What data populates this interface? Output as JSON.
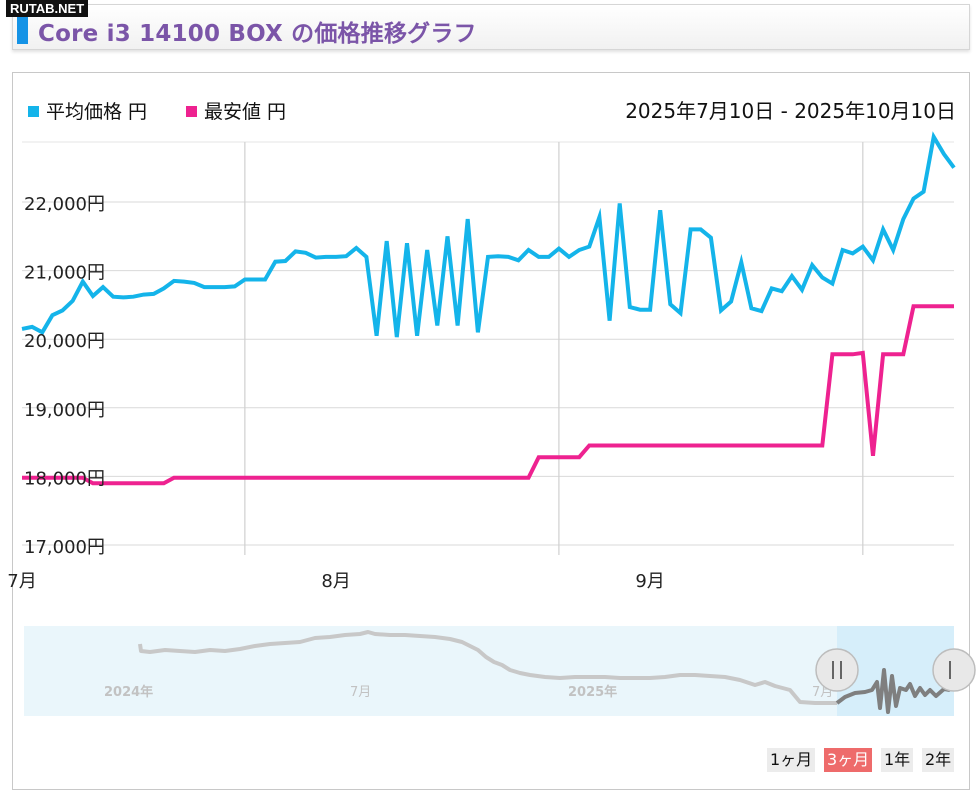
{
  "site": "RUTAB.NET",
  "header": {
    "title": "Core i3 14100 BOX の価格推移グラフ"
  },
  "colors": {
    "avg": "#14b4ea",
    "min": "#ee2290",
    "accent": "#1593e6",
    "title": "#7b55a8"
  },
  "date_range": "2025年7月10日 - 2025年10月10日",
  "range_buttons": [
    {
      "label": "1ヶ月",
      "active": false
    },
    {
      "label": "3ヶ月",
      "active": true
    },
    {
      "label": "1年",
      "active": false
    },
    {
      "label": "2年",
      "active": false
    }
  ],
  "navigator": {
    "labels": [
      "2024年",
      "7月",
      "2025年",
      "7月"
    ],
    "handle_icons": [
      "handle-left-icon",
      "handle-right-icon"
    ]
  },
  "chart_data": {
    "type": "line",
    "legend": "top-left",
    "grid": true,
    "x_start": "2025-07-10",
    "x_end": "2025-10-10",
    "x_ticks": [
      {
        "label": "7月",
        "date": "2025-07-10"
      },
      {
        "label": "8月",
        "date": "2025-08-10"
      },
      {
        "label": "9月",
        "date": "2025-09-10"
      }
    ],
    "ylim": [
      16900,
      22950
    ],
    "yticks": [
      17000,
      18000,
      19000,
      20000,
      21000,
      22000
    ],
    "ytick_labels": [
      "17,000円",
      "18,000円",
      "19,000円",
      "20,000円",
      "21,000円",
      "22,000円"
    ],
    "series": [
      {
        "name": "平均価格 円",
        "color": "#14b4ea",
        "data": [
          [
            "2025-07-10",
            20150
          ],
          [
            "2025-07-11",
            20180
          ],
          [
            "2025-07-12",
            20100
          ],
          [
            "2025-07-13",
            20350
          ],
          [
            "2025-07-14",
            20420
          ],
          [
            "2025-07-15",
            20560
          ],
          [
            "2025-07-16",
            20840
          ],
          [
            "2025-07-17",
            20630
          ],
          [
            "2025-07-18",
            20760
          ],
          [
            "2025-07-19",
            20620
          ],
          [
            "2025-07-20",
            20610
          ],
          [
            "2025-07-21",
            20620
          ],
          [
            "2025-07-22",
            20650
          ],
          [
            "2025-07-23",
            20660
          ],
          [
            "2025-07-24",
            20740
          ],
          [
            "2025-07-25",
            20850
          ],
          [
            "2025-07-26",
            20840
          ],
          [
            "2025-07-27",
            20820
          ],
          [
            "2025-07-28",
            20760
          ],
          [
            "2025-07-29",
            20760
          ],
          [
            "2025-07-30",
            20760
          ],
          [
            "2025-07-31",
            20770
          ],
          [
            "2025-08-01",
            20870
          ],
          [
            "2025-08-02",
            20870
          ],
          [
            "2025-08-03",
            20870
          ],
          [
            "2025-08-04",
            21130
          ],
          [
            "2025-08-05",
            21140
          ],
          [
            "2025-08-06",
            21280
          ],
          [
            "2025-08-07",
            21260
          ],
          [
            "2025-08-08",
            21190
          ],
          [
            "2025-08-09",
            21200
          ],
          [
            "2025-08-10",
            21200
          ],
          [
            "2025-08-11",
            21210
          ],
          [
            "2025-08-12",
            21330
          ],
          [
            "2025-08-13",
            21200
          ],
          [
            "2025-08-14",
            20050
          ],
          [
            "2025-08-15",
            21430
          ],
          [
            "2025-08-16",
            20030
          ],
          [
            "2025-08-17",
            21400
          ],
          [
            "2025-08-18",
            20050
          ],
          [
            "2025-08-19",
            21300
          ],
          [
            "2025-08-20",
            20200
          ],
          [
            "2025-08-21",
            21500
          ],
          [
            "2025-08-22",
            20200
          ],
          [
            "2025-08-23",
            21750
          ],
          [
            "2025-08-24",
            20100
          ],
          [
            "2025-08-25",
            21200
          ],
          [
            "2025-08-26",
            21210
          ],
          [
            "2025-08-27",
            21200
          ],
          [
            "2025-08-28",
            21150
          ],
          [
            "2025-08-29",
            21300
          ],
          [
            "2025-08-30",
            21200
          ],
          [
            "2025-08-31",
            21200
          ],
          [
            "2025-09-01",
            21320
          ],
          [
            "2025-09-02",
            21200
          ],
          [
            "2025-09-03",
            21300
          ],
          [
            "2025-09-04",
            21350
          ],
          [
            "2025-09-05",
            21780
          ],
          [
            "2025-09-06",
            20270
          ],
          [
            "2025-09-07",
            21980
          ],
          [
            "2025-09-08",
            20470
          ],
          [
            "2025-09-09",
            20430
          ],
          [
            "2025-09-10",
            20430
          ],
          [
            "2025-09-11",
            21880
          ],
          [
            "2025-09-12",
            20510
          ],
          [
            "2025-09-13",
            20380
          ],
          [
            "2025-09-14",
            21600
          ],
          [
            "2025-09-15",
            21600
          ],
          [
            "2025-09-16",
            21480
          ],
          [
            "2025-09-17",
            20420
          ],
          [
            "2025-09-18",
            20550
          ],
          [
            "2025-09-19",
            21120
          ],
          [
            "2025-09-20",
            20450
          ],
          [
            "2025-09-21",
            20410
          ],
          [
            "2025-09-22",
            20740
          ],
          [
            "2025-09-23",
            20700
          ],
          [
            "2025-09-24",
            20920
          ],
          [
            "2025-09-25",
            20720
          ],
          [
            "2025-09-26",
            21080
          ],
          [
            "2025-09-27",
            20900
          ],
          [
            "2025-09-28",
            20810
          ],
          [
            "2025-09-29",
            21300
          ],
          [
            "2025-09-30",
            21250
          ],
          [
            "2025-10-01",
            21350
          ],
          [
            "2025-10-02",
            21150
          ],
          [
            "2025-10-03",
            21600
          ],
          [
            "2025-10-04",
            21300
          ],
          [
            "2025-10-05",
            21750
          ],
          [
            "2025-10-06",
            22050
          ],
          [
            "2025-10-07",
            22150
          ],
          [
            "2025-10-08",
            22950
          ],
          [
            "2025-10-09",
            22700
          ],
          [
            "2025-10-10",
            22500
          ]
        ]
      },
      {
        "name": "最安値 円",
        "color": "#ee2290",
        "data": [
          [
            "2025-07-10",
            17980
          ],
          [
            "2025-07-16",
            17980
          ],
          [
            "2025-07-17",
            17900
          ],
          [
            "2025-07-24",
            17900
          ],
          [
            "2025-07-25",
            17980
          ],
          [
            "2025-08-06",
            17980
          ],
          [
            "2025-08-29",
            17980
          ],
          [
            "2025-08-30",
            18280
          ],
          [
            "2025-09-03",
            18280
          ],
          [
            "2025-09-04",
            18450
          ],
          [
            "2025-09-27",
            18450
          ],
          [
            "2025-09-28",
            19780
          ],
          [
            "2025-09-30",
            19780
          ],
          [
            "2025-10-01",
            19800
          ],
          [
            "2025-10-02",
            18300
          ],
          [
            "2025-10-03",
            19780
          ],
          [
            "2025-10-05",
            19780
          ],
          [
            "2025-10-06",
            20480
          ],
          [
            "2025-10-10",
            20480
          ]
        ]
      }
    ]
  }
}
